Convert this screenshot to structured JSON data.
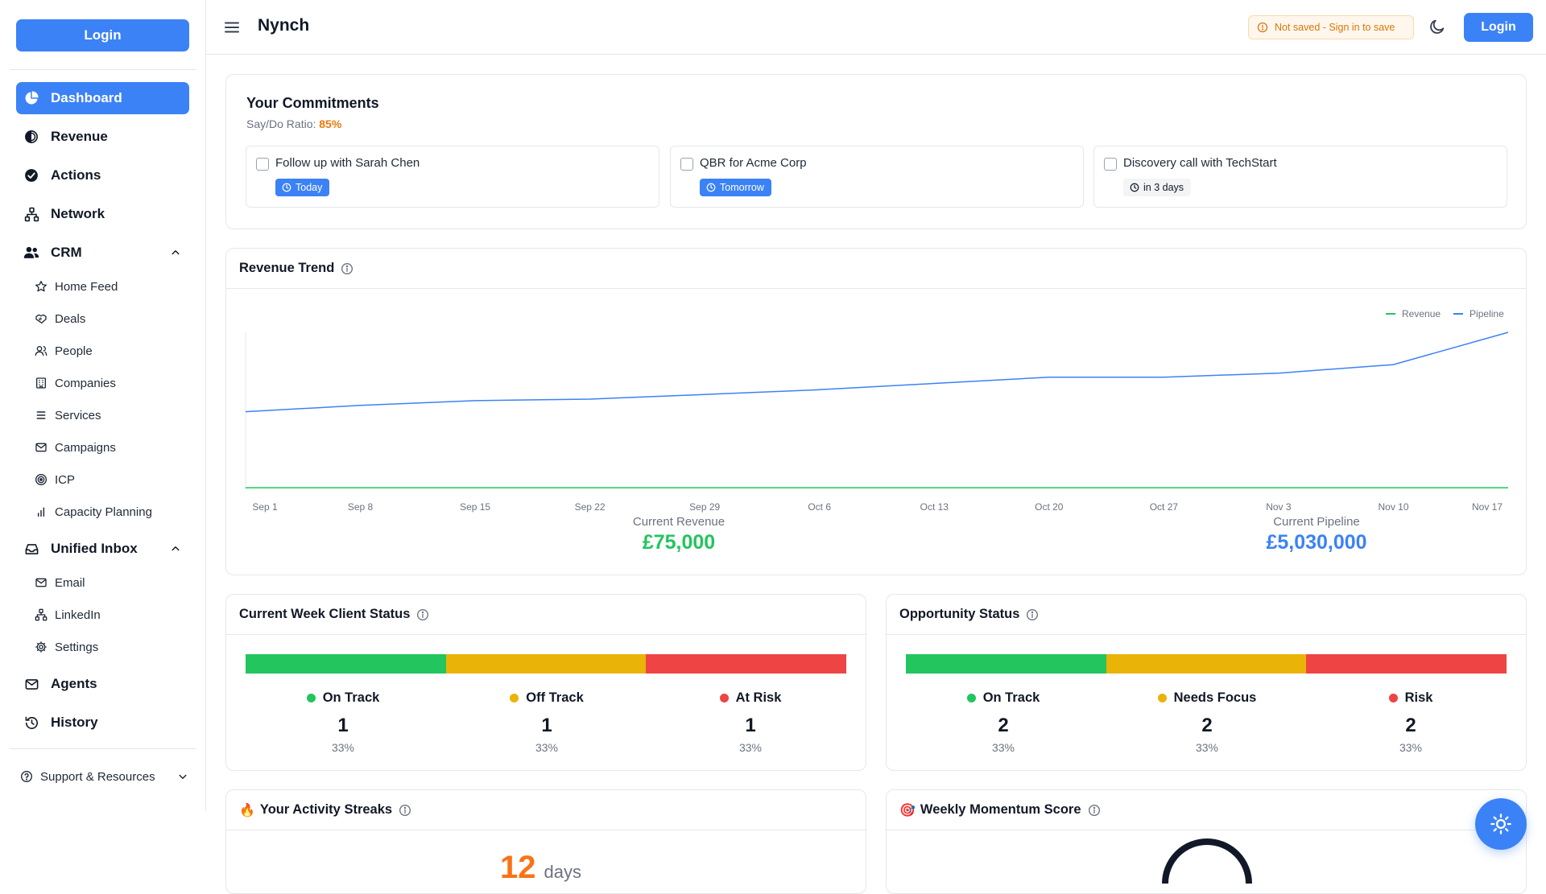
{
  "app": {
    "title": "Nynch"
  },
  "sidebar": {
    "login_label": "Login",
    "items": [
      {
        "label": "Dashboard",
        "icon": "pie-chart-icon",
        "active": true
      },
      {
        "label": "Revenue",
        "icon": "revenue-icon"
      },
      {
        "label": "Actions",
        "icon": "check-circle-icon"
      },
      {
        "label": "Network",
        "icon": "network-icon"
      },
      {
        "label": "CRM",
        "icon": "users-icon",
        "expanded": true,
        "children": [
          {
            "label": "Home Feed",
            "icon": "star-icon"
          },
          {
            "label": "Deals",
            "icon": "handshake-icon"
          },
          {
            "label": "People",
            "icon": "people-icon"
          },
          {
            "label": "Companies",
            "icon": "building-icon"
          },
          {
            "label": "Services",
            "icon": "list-icon"
          },
          {
            "label": "Campaigns",
            "icon": "mail-icon"
          },
          {
            "label": "ICP",
            "icon": "target-icon"
          },
          {
            "label": "Capacity Planning",
            "icon": "bar-chart-icon"
          }
        ]
      },
      {
        "label": "Unified Inbox",
        "icon": "inbox-icon",
        "expanded": true,
        "children": [
          {
            "label": "Email",
            "icon": "mail-icon"
          },
          {
            "label": "LinkedIn",
            "icon": "network-icon"
          },
          {
            "label": "Settings",
            "icon": "gear-icon"
          }
        ]
      },
      {
        "label": "Agents",
        "icon": "mail-icon"
      },
      {
        "label": "History",
        "icon": "history-icon"
      }
    ],
    "support_label": "Support & Resources"
  },
  "header": {
    "not_saved": "Not saved - Sign in to save",
    "login_label": "Login"
  },
  "commitments": {
    "title": "Your Commitments",
    "ratio_label": "Say/Do Ratio:",
    "ratio_value": "85%",
    "items": [
      {
        "text": "Follow up with Sarah Chen",
        "badge": "Today",
        "badge_style": "blue"
      },
      {
        "text": "QBR for Acme Corp",
        "badge": "Tomorrow",
        "badge_style": "blue"
      },
      {
        "text": "Discovery call with TechStart",
        "badge": "in 3 days",
        "badge_style": "gray"
      }
    ]
  },
  "revenue_trend": {
    "title": "Revenue Trend",
    "current_revenue_label": "Current Revenue",
    "current_revenue_value": "£75,000",
    "current_pipeline_label": "Current Pipeline",
    "current_pipeline_value": "£5,030,000",
    "colors": {
      "revenue": "#22c55e",
      "pipeline": "#3b82f6"
    }
  },
  "chart_data": {
    "type": "line",
    "title": "Revenue Trend",
    "categories": [
      "Sep 1",
      "Sep 8",
      "Sep 15",
      "Sep 22",
      "Sep 29",
      "Oct 6",
      "Oct 13",
      "Oct 20",
      "Oct 27",
      "Nov 3",
      "Nov 10",
      "Nov 17"
    ],
    "series": [
      {
        "name": "Revenue",
        "values": [
          75000,
          75000,
          75000,
          75000,
          75000,
          75000,
          75000,
          75000,
          75000,
          75000,
          75000,
          75000
        ]
      },
      {
        "name": "Pipeline",
        "values": [
          2500000,
          2700000,
          2850000,
          2900000,
          3050000,
          3200000,
          3400000,
          3600000,
          3600000,
          3730000,
          4000000,
          5030000
        ]
      }
    ],
    "ylim": [
      0,
      5030000
    ],
    "legend": "top-right",
    "grid": false
  },
  "client_status": {
    "title": "Current Week Client Status",
    "segments": [
      {
        "label": "On Track",
        "count": "1",
        "pct": "33%",
        "color": "#22c55e",
        "fraction": 0.3333
      },
      {
        "label": "Off Track",
        "count": "1",
        "pct": "33%",
        "color": "#eab308",
        "fraction": 0.3333
      },
      {
        "label": "At Risk",
        "count": "1",
        "pct": "33%",
        "color": "#ef4444",
        "fraction": 0.3334
      }
    ]
  },
  "opportunity_status": {
    "title": "Opportunity Status",
    "segments": [
      {
        "label": "On Track",
        "count": "2",
        "pct": "33%",
        "color": "#22c55e",
        "fraction": 0.3333
      },
      {
        "label": "Needs Focus",
        "count": "2",
        "pct": "33%",
        "color": "#eab308",
        "fraction": 0.3333
      },
      {
        "label": "Risk",
        "count": "2",
        "pct": "33%",
        "color": "#ef4444",
        "fraction": 0.3334
      }
    ]
  },
  "streaks": {
    "title": "Your Activity Streaks",
    "emoji": "🔥",
    "value": "12",
    "unit": "days"
  },
  "momentum": {
    "title": "Weekly Momentum Score",
    "emoji": "🎯"
  }
}
